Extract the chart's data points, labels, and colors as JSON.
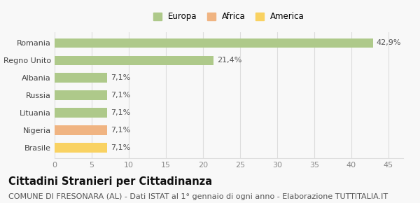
{
  "categories": [
    "Brasile",
    "Nigeria",
    "Lituania",
    "Russia",
    "Albania",
    "Regno Unito",
    "Romania"
  ],
  "values": [
    7.1,
    7.1,
    7.1,
    7.1,
    7.1,
    21.4,
    42.9
  ],
  "labels": [
    "7,1%",
    "7,1%",
    "7,1%",
    "7,1%",
    "7,1%",
    "21,4%",
    "42,9%"
  ],
  "colors": [
    "#f9d262",
    "#f0b482",
    "#aec98a",
    "#aec98a",
    "#aec98a",
    "#aec98a",
    "#aec98a"
  ],
  "legend_items": [
    {
      "label": "Europa",
      "color": "#aec98a"
    },
    {
      "label": "Africa",
      "color": "#f0b482"
    },
    {
      "label": "America",
      "color": "#f9d262"
    }
  ],
  "xlim": [
    0,
    47
  ],
  "xticks": [
    0,
    5,
    10,
    15,
    20,
    25,
    30,
    35,
    40,
    45
  ],
  "title": "Cittadini Stranieri per Cittadinanza",
  "subtitle": "COMUNE DI FRESONARA (AL) - Dati ISTAT al 1° gennaio di ogni anno - Elaborazione TUTTITALIA.IT",
  "background_color": "#f8f8f8",
  "bar_height": 0.55,
  "title_fontsize": 10.5,
  "subtitle_fontsize": 8,
  "tick_fontsize": 8,
  "label_fontsize": 8,
  "legend_fontsize": 8.5,
  "grid_color": "#dddddd"
}
